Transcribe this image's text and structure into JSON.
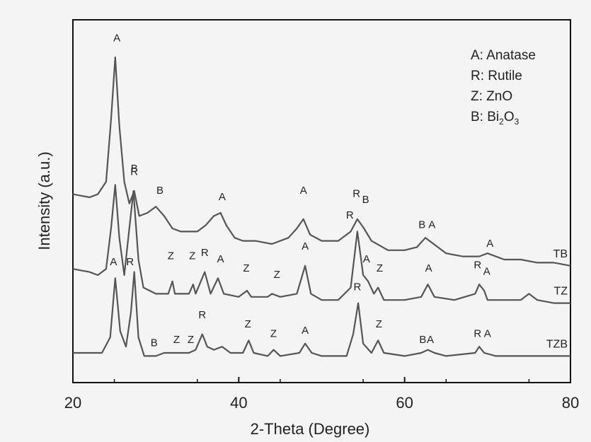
{
  "chart_data": {
    "type": "line",
    "title": "",
    "xlabel": "2-Theta (Degree)",
    "ylabel": "Intensity (a.u.)",
    "xlim": [
      20,
      80
    ],
    "xticks": [
      20,
      40,
      60,
      80
    ],
    "y_ticks_shown": false,
    "grid": false,
    "legend": {
      "position": "top-right",
      "entries": [
        {
          "key": "A",
          "text": "Anatase"
        },
        {
          "key": "R",
          "text": "Rutile"
        },
        {
          "key": "Z",
          "text": "ZnO"
        },
        {
          "key": "B",
          "text": "Bi",
          "sub1": "2",
          "mid": "O",
          "sub2": "3"
        }
      ],
      "separator": ": "
    },
    "series": [
      {
        "name": "TB",
        "baseline": 0.56,
        "points": [
          [
            20,
            0.56
          ],
          [
            21,
            0.555
          ],
          [
            22,
            0.55
          ],
          [
            23,
            0.56
          ],
          [
            24,
            0.6
          ],
          [
            24.6,
            0.8
          ],
          [
            25.1,
            1.0
          ],
          [
            25.6,
            0.78
          ],
          [
            26.2,
            0.6
          ],
          [
            26.8,
            0.53
          ],
          [
            27.4,
            0.57
          ],
          [
            28,
            0.49
          ],
          [
            29,
            0.5
          ],
          [
            30,
            0.52
          ],
          [
            31,
            0.49
          ],
          [
            32,
            0.45
          ],
          [
            33,
            0.44
          ],
          [
            34,
            0.44
          ],
          [
            35,
            0.44
          ],
          [
            36,
            0.46
          ],
          [
            37,
            0.49
          ],
          [
            37.8,
            0.5
          ],
          [
            38.5,
            0.46
          ],
          [
            39.5,
            0.42
          ],
          [
            40.5,
            0.41
          ],
          [
            42,
            0.41
          ],
          [
            44,
            0.4
          ],
          [
            46,
            0.42
          ],
          [
            47,
            0.45
          ],
          [
            47.8,
            0.48
          ],
          [
            48.6,
            0.43
          ],
          [
            50,
            0.41
          ],
          [
            52,
            0.41
          ],
          [
            53.5,
            0.44
          ],
          [
            54.3,
            0.48
          ],
          [
            55.1,
            0.45
          ],
          [
            56,
            0.41
          ],
          [
            58,
            0.38
          ],
          [
            60,
            0.38
          ],
          [
            61.5,
            0.39
          ],
          [
            62.5,
            0.42
          ],
          [
            63.5,
            0.4
          ],
          [
            65,
            0.37
          ],
          [
            67,
            0.36
          ],
          [
            69,
            0.36
          ],
          [
            70,
            0.37
          ],
          [
            72,
            0.35
          ],
          [
            74,
            0.35
          ],
          [
            76,
            0.34
          ],
          [
            78,
            0.34
          ],
          [
            80,
            0.33
          ]
        ],
        "peaks": [
          {
            "label": "A",
            "x": 25.3,
            "y": 1.04
          },
          {
            "label": "B",
            "x": 27.4,
            "y": 0.62
          },
          {
            "label": "B",
            "x": 30.5,
            "y": 0.55
          },
          {
            "label": "A",
            "x": 38,
            "y": 0.53
          },
          {
            "label": "A",
            "x": 47.8,
            "y": 0.55
          },
          {
            "label": "R",
            "x": 54.2,
            "y": 0.54
          },
          {
            "label": "B",
            "x": 55.3,
            "y": 0.52
          },
          {
            "label": "B",
            "x": 62.1,
            "y": 0.44
          },
          {
            "label": "A",
            "x": 63.3,
            "y": 0.44
          },
          {
            "label": "A",
            "x": 70.3,
            "y": 0.38
          }
        ],
        "end_label": "TB"
      },
      {
        "name": "TZ",
        "baseline": 0.32,
        "points": [
          [
            20,
            0.32
          ],
          [
            21,
            0.315
          ],
          [
            22,
            0.31
          ],
          [
            23,
            0.3
          ],
          [
            24,
            0.32
          ],
          [
            24.6,
            0.45
          ],
          [
            25.1,
            0.59
          ],
          [
            25.6,
            0.42
          ],
          [
            26.2,
            0.3
          ],
          [
            26.6,
            0.4
          ],
          [
            27.3,
            0.57
          ],
          [
            27.9,
            0.35
          ],
          [
            28.5,
            0.26
          ],
          [
            30,
            0.24
          ],
          [
            31.5,
            0.24
          ],
          [
            32,
            0.28
          ],
          [
            32.3,
            0.24
          ],
          [
            34,
            0.24
          ],
          [
            34.5,
            0.27
          ],
          [
            34.8,
            0.24
          ],
          [
            35.9,
            0.31
          ],
          [
            36.6,
            0.24
          ],
          [
            37.5,
            0.29
          ],
          [
            38.2,
            0.24
          ],
          [
            40,
            0.23
          ],
          [
            41,
            0.25
          ],
          [
            41.5,
            0.23
          ],
          [
            43.5,
            0.23
          ],
          [
            44,
            0.24
          ],
          [
            45,
            0.23
          ],
          [
            47,
            0.24
          ],
          [
            48,
            0.33
          ],
          [
            48.7,
            0.24
          ],
          [
            50,
            0.22
          ],
          [
            52,
            0.22
          ],
          [
            53.5,
            0.26
          ],
          [
            54.3,
            0.44
          ],
          [
            55,
            0.3
          ],
          [
            55.6,
            0.28
          ],
          [
            56.3,
            0.24
          ],
          [
            56.8,
            0.26
          ],
          [
            57.5,
            0.22
          ],
          [
            60,
            0.22
          ],
          [
            62,
            0.23
          ],
          [
            62.8,
            0.27
          ],
          [
            63.6,
            0.23
          ],
          [
            66,
            0.22
          ],
          [
            68.5,
            0.24
          ],
          [
            69,
            0.27
          ],
          [
            69.6,
            0.25
          ],
          [
            70,
            0.22
          ],
          [
            72,
            0.22
          ],
          [
            74,
            0.22
          ],
          [
            75,
            0.24
          ],
          [
            76,
            0.22
          ],
          [
            78,
            0.21
          ],
          [
            80,
            0.21
          ]
        ],
        "peaks": [
          {
            "label": "R",
            "x": 27.4,
            "y": 0.61
          },
          {
            "label": "Z",
            "x": 31.8,
            "y": 0.34
          },
          {
            "label": "Z",
            "x": 34.4,
            "y": 0.34
          },
          {
            "label": "R",
            "x": 35.9,
            "y": 0.35
          },
          {
            "label": "A",
            "x": 37.8,
            "y": 0.33
          },
          {
            "label": "Z",
            "x": 40.9,
            "y": 0.3
          },
          {
            "label": "Z",
            "x": 44.6,
            "y": 0.28
          },
          {
            "label": "A",
            "x": 48,
            "y": 0.37
          },
          {
            "label": "R",
            "x": 53.4,
            "y": 0.47
          },
          {
            "label": "A",
            "x": 55.4,
            "y": 0.33
          },
          {
            "label": "Z",
            "x": 57,
            "y": 0.3
          },
          {
            "label": "A",
            "x": 62.9,
            "y": 0.3
          },
          {
            "label": "R",
            "x": 68.8,
            "y": 0.31
          },
          {
            "label": "A",
            "x": 69.9,
            "y": 0.29
          }
        ],
        "end_label": "TZ"
      },
      {
        "name": "TZB",
        "baseline": 0.05,
        "points": [
          [
            20,
            0.05
          ],
          [
            22,
            0.05
          ],
          [
            23.5,
            0.05
          ],
          [
            24.5,
            0.1
          ],
          [
            25.1,
            0.29
          ],
          [
            25.7,
            0.12
          ],
          [
            26.4,
            0.07
          ],
          [
            27,
            0.18
          ],
          [
            27.4,
            0.31
          ],
          [
            27.9,
            0.1
          ],
          [
            28.6,
            0.04
          ],
          [
            30,
            0.04
          ],
          [
            31,
            0.05
          ],
          [
            32,
            0.05
          ],
          [
            33,
            0.05
          ],
          [
            34,
            0.05
          ],
          [
            34.8,
            0.06
          ],
          [
            35.6,
            0.11
          ],
          [
            36.2,
            0.07
          ],
          [
            37,
            0.06
          ],
          [
            38,
            0.07
          ],
          [
            39,
            0.05
          ],
          [
            40.5,
            0.05
          ],
          [
            41.2,
            0.09
          ],
          [
            41.8,
            0.05
          ],
          [
            43.5,
            0.04
          ],
          [
            44.2,
            0.06
          ],
          [
            45,
            0.04
          ],
          [
            47.3,
            0.05
          ],
          [
            48,
            0.08
          ],
          [
            48.8,
            0.05
          ],
          [
            50,
            0.04
          ],
          [
            53,
            0.04
          ],
          [
            53.8,
            0.11
          ],
          [
            54.4,
            0.21
          ],
          [
            55,
            0.08
          ],
          [
            56,
            0.05
          ],
          [
            56.8,
            0.09
          ],
          [
            57.5,
            0.05
          ],
          [
            60,
            0.04
          ],
          [
            62,
            0.05
          ],
          [
            62.8,
            0.06
          ],
          [
            63.6,
            0.05
          ],
          [
            65,
            0.04
          ],
          [
            68.5,
            0.05
          ],
          [
            69,
            0.07
          ],
          [
            69.6,
            0.05
          ],
          [
            71,
            0.04
          ],
          [
            75,
            0.04
          ],
          [
            80,
            0.04
          ]
        ],
        "peaks": [
          {
            "label": "A",
            "x": 24.9,
            "y": 0.32
          },
          {
            "label": "R",
            "x": 26.9,
            "y": 0.32
          },
          {
            "label": "B",
            "x": 29.8,
            "y": 0.06
          },
          {
            "label": "Z",
            "x": 32.5,
            "y": 0.07
          },
          {
            "label": "Z",
            "x": 34.2,
            "y": 0.07
          },
          {
            "label": "R",
            "x": 35.6,
            "y": 0.15
          },
          {
            "label": "Z",
            "x": 41.1,
            "y": 0.12
          },
          {
            "label": "Z",
            "x": 44.2,
            "y": 0.09
          },
          {
            "label": "A",
            "x": 48,
            "y": 0.1
          },
          {
            "label": "R",
            "x": 54.3,
            "y": 0.24
          },
          {
            "label": "Z",
            "x": 56.9,
            "y": 0.12
          },
          {
            "label": "B",
            "x": 62.2,
            "y": 0.07
          },
          {
            "label": "A",
            "x": 63.1,
            "y": 0.07
          },
          {
            "label": "R",
            "x": 68.8,
            "y": 0.09
          },
          {
            "label": "A",
            "x": 70,
            "y": 0.09
          }
        ],
        "end_label": "TZB"
      }
    ],
    "colors": {
      "line": "#555555",
      "axis": "#111111",
      "text": "#222222",
      "background": "#f4f4f4"
    }
  }
}
